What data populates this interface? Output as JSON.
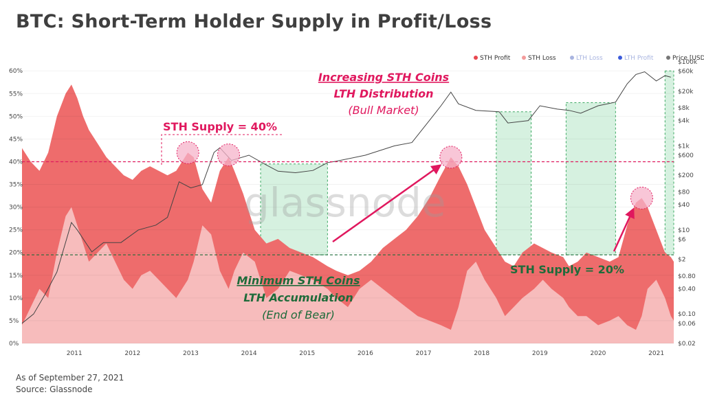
{
  "title": "BTC: Short-Term Holder Supply in Profit/Loss",
  "footer": {
    "as_of": "As of September 27, 2021",
    "source": "Source: Glassnode"
  },
  "watermark": "glassnode",
  "colors": {
    "sth_profit": "#ee6c6c",
    "sth_loss": "#f7bcbc",
    "lth_loss": "#a8b4e0",
    "lth_profit": "#3b5bdb",
    "price": "#808080",
    "zone_fill": "#c8ecd6",
    "zone_stroke": "#3aa860",
    "accent_pink": "#e0185e",
    "accent_green": "#1e6b3a"
  },
  "legend": [
    {
      "label": "STH Profit",
      "color": "#e8484f",
      "faded": false
    },
    {
      "label": "STH Loss",
      "color": "#f39b9b",
      "faded": false
    },
    {
      "label": "LTH Loss",
      "color": "#a8b4e0",
      "faded": true
    },
    {
      "label": "LTH Profit",
      "color": "#3b5bdb",
      "faded": true
    },
    {
      "label": "Price [USD]",
      "color": "#777777",
      "faded": false
    }
  ],
  "annotations": {
    "sth40_label": "STH Supply = 40%",
    "sth20_label": "STH Supply = 20%",
    "bull_line1": "Increasing STH Coins",
    "bull_line2": "LTH Distribution",
    "bull_line3": "(Bull Market)",
    "bear_line1": "Minimum STH Coins",
    "bear_line2": "LTH Accumulation",
    "bear_line3": "(End of Bear)"
  },
  "chart_data": {
    "type": "area",
    "x_axis": {
      "ticks": [
        "2011",
        "2012",
        "2013",
        "2014",
        "2015",
        "2016",
        "2017",
        "2018",
        "2019",
        "2020",
        "2021"
      ],
      "range": [
        2010.6,
        2021.8
      ]
    },
    "y_left": {
      "ticks": [
        "0%",
        "5%",
        "10%",
        "15%",
        "20%",
        "25%",
        "30%",
        "35%",
        "40%",
        "45%",
        "50%",
        "55%",
        "60%"
      ],
      "range": [
        0,
        62
      ]
    },
    "y_right": {
      "scale": "log",
      "ticks": [
        "$0.02",
        "$0.06",
        "$0.10",
        "$0.40",
        "$0.80",
        "$2",
        "$6",
        "$10",
        "$40",
        "$80",
        "$200",
        "$600",
        "$1k",
        "$4k",
        "$8k",
        "$20k",
        "$60k",
        "$100k"
      ],
      "range": [
        0.02,
        100000
      ]
    },
    "reference_lines": [
      {
        "label": "STH Supply = 40%",
        "y": 40
      },
      {
        "label": "STH Supply = 20%",
        "y": 19.5
      }
    ],
    "shaded_zones": [
      [
        2014.7,
        2015.85
      ],
      [
        2018.75,
        2019.35
      ],
      [
        2019.95,
        2020.8
      ],
      [
        2021.65,
        2021.8
      ]
    ],
    "highlighted_peaks": [
      {
        "x": 2013.45,
        "y": 42
      },
      {
        "x": 2014.15,
        "y": 41.5
      },
      {
        "x": 2017.97,
        "y": 41
      },
      {
        "x": 2021.25,
        "y": 32
      }
    ],
    "series": [
      {
        "name": "STH Profit",
        "x": [
          2010.6,
          2010.75,
          2010.9,
          2011.05,
          2011.2,
          2011.35,
          2011.45,
          2011.55,
          2011.65,
          2011.75,
          2011.9,
          2012.05,
          2012.2,
          2012.35,
          2012.5,
          2012.65,
          2012.8,
          2012.95,
          2013.1,
          2013.25,
          2013.35,
          2013.45,
          2013.55,
          2013.7,
          2013.85,
          2014.0,
          2014.15,
          2014.25,
          2014.4,
          2014.6,
          2014.8,
          2015.0,
          2015.2,
          2015.4,
          2015.6,
          2015.85,
          2016.0,
          2016.2,
          2016.4,
          2016.6,
          2016.8,
          2017.0,
          2017.2,
          2017.4,
          2017.6,
          2017.8,
          2017.97,
          2018.1,
          2018.25,
          2018.4,
          2018.55,
          2018.75,
          2018.9,
          2019.05,
          2019.2,
          2019.4,
          2019.55,
          2019.7,
          2019.9,
          2020.0,
          2020.15,
          2020.3,
          2020.5,
          2020.7,
          2020.85,
          2021.0,
          2021.15,
          2021.25,
          2021.35,
          2021.5,
          2021.65,
          2021.75,
          2021.8
        ],
        "values": [
          43,
          40,
          38,
          42,
          50,
          55,
          57,
          54,
          50,
          47,
          44,
          41,
          39,
          37,
          36,
          38,
          39,
          38,
          37,
          38,
          40,
          42,
          41,
          34,
          31,
          38,
          41,
          38,
          33,
          25,
          22,
          23,
          21,
          20,
          19,
          17,
          16,
          15,
          16,
          18,
          21,
          23,
          25,
          28,
          32,
          37,
          41,
          39,
          35,
          30,
          25,
          21,
          18,
          17,
          20,
          22,
          21,
          20,
          19,
          17,
          18,
          20,
          19,
          18,
          19,
          26,
          31,
          32,
          30,
          25,
          20,
          19,
          18
        ]
      },
      {
        "name": "STH Loss",
        "x": [
          2010.6,
          2010.75,
          2010.9,
          2011.05,
          2011.2,
          2011.35,
          2011.45,
          2011.55,
          2011.65,
          2011.75,
          2011.9,
          2012.05,
          2012.2,
          2012.35,
          2012.5,
          2012.65,
          2012.8,
          2012.95,
          2013.1,
          2013.25,
          2013.35,
          2013.45,
          2013.55,
          2013.7,
          2013.85,
          2014.0,
          2014.15,
          2014.25,
          2014.4,
          2014.6,
          2014.8,
          2015.0,
          2015.2,
          2015.4,
          2015.6,
          2015.85,
          2016.0,
          2016.2,
          2016.4,
          2016.6,
          2016.8,
          2017.0,
          2017.2,
          2017.4,
          2017.6,
          2017.8,
          2017.97,
          2018.1,
          2018.25,
          2018.4,
          2018.55,
          2018.75,
          2018.9,
          2019.05,
          2019.2,
          2019.4,
          2019.55,
          2019.7,
          2019.9,
          2020.0,
          2020.15,
          2020.3,
          2020.5,
          2020.7,
          2020.85,
          2021.0,
          2021.15,
          2021.25,
          2021.35,
          2021.5,
          2021.65,
          2021.75,
          2021.8
        ],
        "values": [
          4,
          8,
          12,
          10,
          20,
          28,
          30,
          26,
          22,
          18,
          20,
          22,
          18,
          14,
          12,
          15,
          16,
          14,
          12,
          10,
          12,
          14,
          18,
          26,
          24,
          16,
          12,
          16,
          20,
          18,
          10,
          12,
          16,
          15,
          14,
          12,
          10,
          8,
          12,
          14,
          12,
          10,
          8,
          6,
          5,
          4,
          3,
          8,
          16,
          18,
          14,
          10,
          6,
          8,
          10,
          12,
          14,
          12,
          10,
          8,
          6,
          6,
          4,
          5,
          6,
          4,
          3,
          6,
          12,
          14,
          10,
          6,
          5
        ]
      },
      {
        "name": "Price [USD]",
        "x": [
          2010.6,
          2010.8,
          2011.0,
          2011.2,
          2011.45,
          2011.55,
          2011.8,
          2012.0,
          2012.3,
          2012.6,
          2012.9,
          2013.1,
          2013.3,
          2013.5,
          2013.7,
          2013.9,
          2014.0,
          2014.2,
          2014.5,
          2014.8,
          2015.0,
          2015.3,
          2015.6,
          2015.85,
          2016.0,
          2016.5,
          2017.0,
          2017.3,
          2017.6,
          2017.8,
          2017.97,
          2018.1,
          2018.4,
          2018.8,
          2018.95,
          2019.3,
          2019.5,
          2019.8,
          2020.0,
          2020.2,
          2020.5,
          2020.8,
          2021.0,
          2021.15,
          2021.3,
          2021.5,
          2021.65,
          2021.75
        ],
        "values": [
          0.06,
          0.1,
          0.3,
          1,
          15,
          10,
          3,
          5,
          5,
          10,
          13,
          20,
          140,
          100,
          120,
          700,
          900,
          450,
          600,
          350,
          250,
          230,
          260,
          400,
          430,
          600,
          1000,
          1200,
          4000,
          9000,
          19000,
          10000,
          7000,
          6500,
          3500,
          4000,
          9000,
          7500,
          7000,
          6000,
          9000,
          11000,
          30000,
          50000,
          58000,
          35000,
          47000,
          43000
        ]
      }
    ]
  }
}
